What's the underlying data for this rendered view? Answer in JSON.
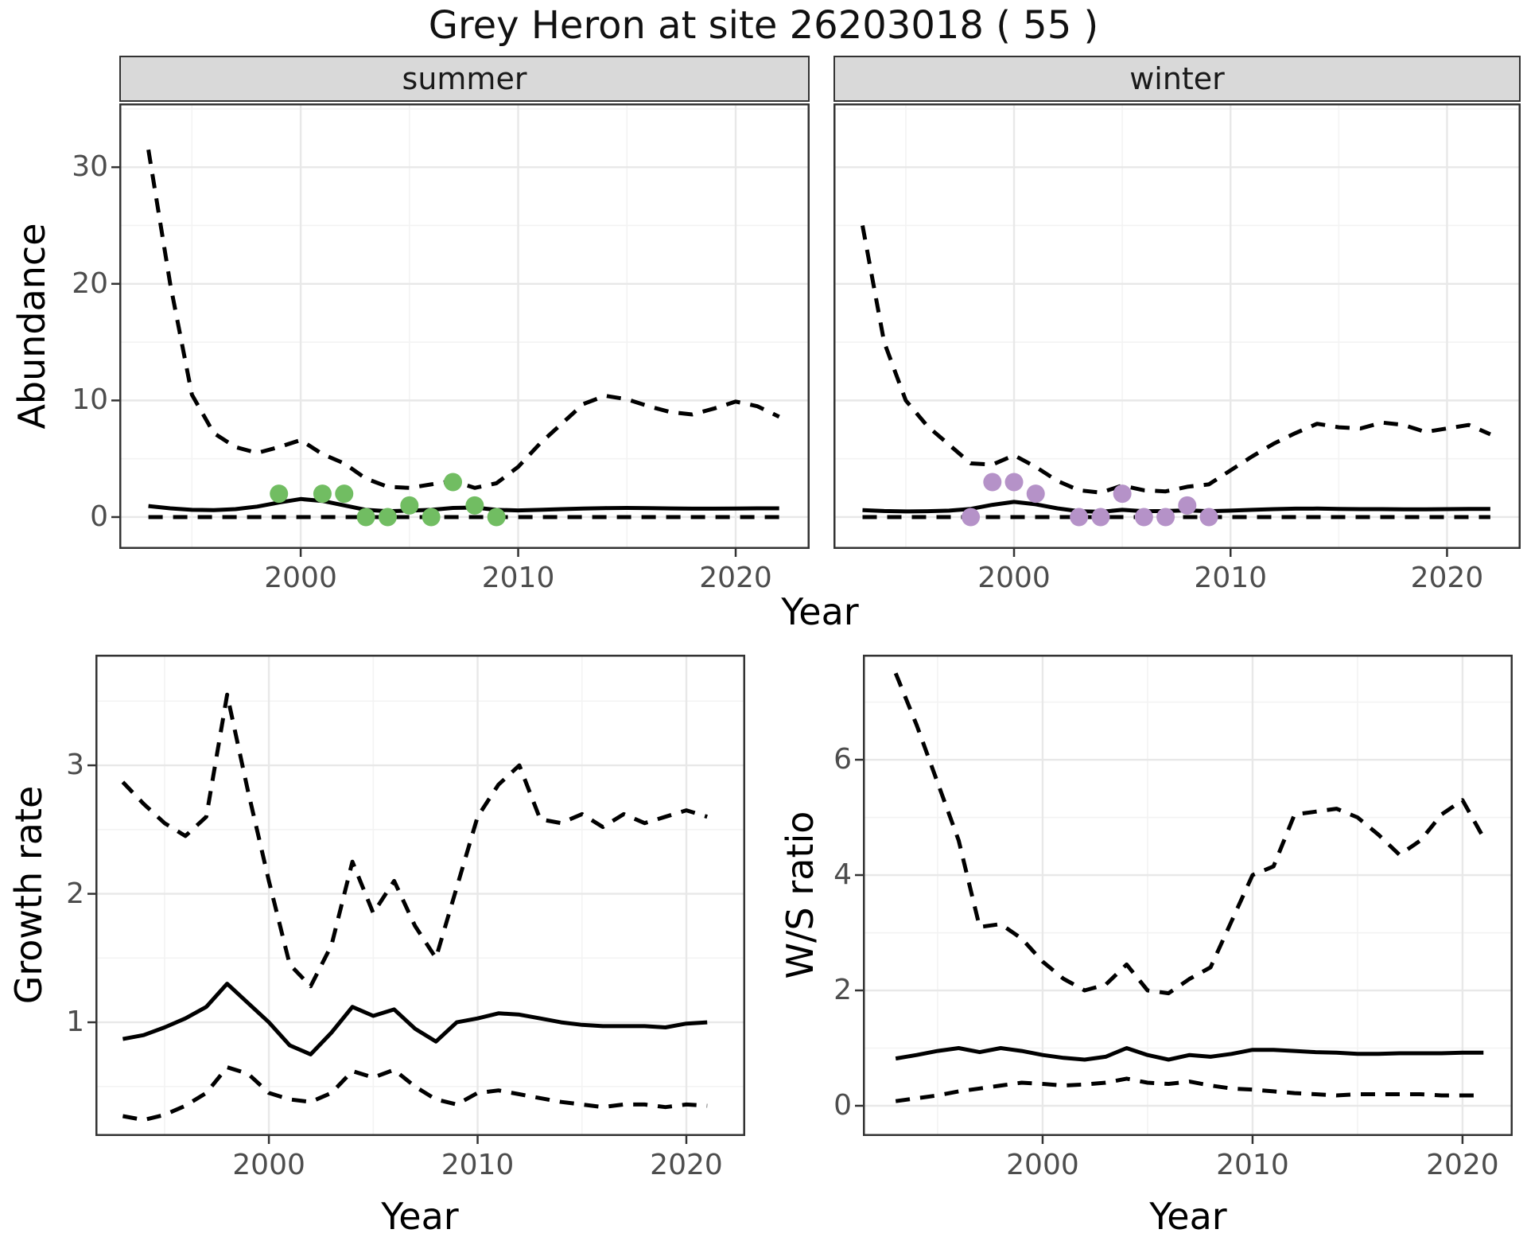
{
  "title": "Grey Heron at site 26203018 ( 55 )",
  "axes": {
    "x_label_top": "Year",
    "x_label_growth": "Year",
    "x_label_ws": "Year",
    "abundance_label": "Abundance",
    "growth_label": "Growth rate",
    "ws_label": "W/S ratio"
  },
  "facets": [
    {
      "label": "summer"
    },
    {
      "label": "winter"
    }
  ],
  "colors": {
    "summer_points": "#71BD62",
    "winter_points": "#B592C8",
    "line": "#000000",
    "strip_bg": "#D9D9D9",
    "grid_major": "#E8E8E8",
    "grid_minor": "#F3F3F3",
    "tick_label": "#4D4D4D",
    "panel_border": "#333333"
  },
  "chart_data": [
    {
      "id": "abundance_summer",
      "type": "line",
      "title": "summer",
      "xlabel": "Year",
      "ylabel": "Abundance",
      "xlim": [
        1991.66,
        2023.4
      ],
      "ylim": [
        -2.73,
        35.47
      ],
      "xticks": [
        2000,
        2010,
        2020
      ],
      "yticks": [
        0,
        10,
        20,
        30
      ],
      "xticks_minor": [
        1995,
        2005,
        2015
      ],
      "yticks_minor": [
        5,
        15,
        25,
        35
      ],
      "grid": true,
      "legend": "none",
      "x": [
        1993,
        1994,
        1995,
        1996,
        1997,
        1998,
        1999,
        2000,
        2001,
        2002,
        2003,
        2004,
        2005,
        2006,
        2007,
        2008,
        2009,
        2010,
        2011,
        2012,
        2013,
        2014,
        2015,
        2016,
        2017,
        2018,
        2019,
        2020,
        2021,
        2022
      ],
      "series": [
        {
          "name": "upper_95ci",
          "style": "dashed",
          "values": [
            31.5,
            20,
            10.5,
            7.2,
            6,
            5.5,
            6,
            6.6,
            5.4,
            4.6,
            3.3,
            2.6,
            2.5,
            2.8,
            3.1,
            2.5,
            2.9,
            4.3,
            6.3,
            8,
            9.7,
            10.4,
            10.1,
            9.5,
            9,
            8.8,
            9.3,
            9.9,
            9.5,
            8.6
          ]
        },
        {
          "name": "lower_95ci",
          "style": "dashed",
          "values": [
            0,
            0,
            0,
            0,
            0,
            0,
            0,
            0,
            0,
            0,
            0,
            0,
            0,
            0,
            0,
            0,
            0,
            0,
            0,
            0,
            0,
            0,
            0,
            0,
            0,
            0,
            0,
            0,
            0,
            0
          ]
        },
        {
          "name": "estimate",
          "style": "solid",
          "values": [
            0.95,
            0.75,
            0.62,
            0.6,
            0.68,
            0.9,
            1.25,
            1.55,
            1.38,
            1,
            0.62,
            0.5,
            0.55,
            0.62,
            0.78,
            0.82,
            0.62,
            0.57,
            0.62,
            0.68,
            0.73,
            0.77,
            0.78,
            0.77,
            0.74,
            0.72,
            0.72,
            0.73,
            0.75,
            0.75
          ]
        }
      ],
      "points": {
        "name": "observed_counts_summer",
        "color": "#71BD62",
        "x": [
          1999,
          2001,
          2002,
          2003,
          2004,
          2005,
          2006,
          2007,
          2008,
          2009
        ],
        "y": [
          2,
          2,
          2,
          0,
          0,
          1,
          0,
          3,
          1,
          0
        ]
      }
    },
    {
      "id": "abundance_winter",
      "type": "line",
      "title": "winter",
      "xlabel": "Year",
      "ylabel": "Abundance",
      "xlim": [
        1991.66,
        2023.4
      ],
      "ylim": [
        -2.73,
        35.47
      ],
      "xticks": [
        2000,
        2010,
        2020
      ],
      "yticks": [
        0,
        10,
        20,
        30
      ],
      "xticks_minor": [
        1995,
        2005,
        2015
      ],
      "yticks_minor": [
        5,
        15,
        25,
        35
      ],
      "grid": true,
      "legend": "none",
      "x": [
        1993,
        1994,
        1995,
        1996,
        1997,
        1998,
        1999,
        2000,
        2001,
        2002,
        2003,
        2004,
        2005,
        2006,
        2007,
        2008,
        2009,
        2010,
        2011,
        2012,
        2013,
        2014,
        2015,
        2016,
        2017,
        2018,
        2019,
        2020,
        2021,
        2022
      ],
      "series": [
        {
          "name": "upper_95ci",
          "style": "dashed",
          "values": [
            25,
            15,
            10,
            7.8,
            6.2,
            4.6,
            4.5,
            5.3,
            4.3,
            3.1,
            2.3,
            2.1,
            2.7,
            2.3,
            2.2,
            2.6,
            2.8,
            4,
            5.2,
            6.3,
            7.2,
            8,
            7.7,
            7.6,
            8.1,
            7.9,
            7.3,
            7.6,
            7.9,
            7.1
          ]
        },
        {
          "name": "lower_95ci",
          "style": "dashed",
          "values": [
            0,
            0,
            0,
            0,
            0,
            0,
            0,
            0,
            0,
            0,
            0,
            0,
            0,
            0,
            0,
            0,
            0,
            0,
            0,
            0,
            0,
            0,
            0,
            0,
            0,
            0,
            0,
            0,
            0,
            0
          ]
        },
        {
          "name": "estimate",
          "style": "solid",
          "values": [
            0.6,
            0.52,
            0.48,
            0.5,
            0.55,
            0.7,
            1.05,
            1.3,
            1.1,
            0.75,
            0.5,
            0.45,
            0.62,
            0.5,
            0.52,
            0.58,
            0.5,
            0.55,
            0.62,
            0.68,
            0.72,
            0.73,
            0.7,
            0.68,
            0.68,
            0.66,
            0.66,
            0.68,
            0.7,
            0.7
          ]
        }
      ],
      "points": {
        "name": "observed_counts_winter",
        "color": "#B592C8",
        "x": [
          1998,
          1999,
          2000,
          2001,
          2003,
          2004,
          2005,
          2006,
          2007,
          2008,
          2009
        ],
        "y": [
          0,
          3,
          3,
          2,
          0,
          0,
          2,
          0,
          0,
          1,
          0
        ]
      }
    },
    {
      "id": "growth_rate",
      "type": "line",
      "title": "",
      "xlabel": "Year",
      "ylabel": "Growth rate",
      "xlim": [
        1991.69,
        2022.82
      ],
      "ylim": [
        0.115,
        3.861
      ],
      "xticks": [
        2000,
        2010,
        2020
      ],
      "yticks": [
        1,
        2,
        3
      ],
      "xticks_minor": [
        1995,
        2005,
        2015
      ],
      "yticks_minor": [
        0.5,
        1.5,
        2.5,
        3.5
      ],
      "grid": true,
      "legend": "none",
      "x": [
        1993,
        1994,
        1995,
        1996,
        1997,
        1998,
        1999,
        2000,
        2001,
        2002,
        2003,
        2004,
        2005,
        2006,
        2007,
        2008,
        2009,
        2010,
        2011,
        2012,
        2013,
        2014,
        2015,
        2016,
        2017,
        2018,
        2019,
        2020,
        2021
      ],
      "series": [
        {
          "name": "upper_95ci",
          "style": "dashed",
          "values": [
            2.87,
            2.7,
            2.55,
            2.45,
            2.6,
            3.55,
            2.8,
            2.1,
            1.45,
            1.28,
            1.6,
            2.25,
            1.85,
            2.1,
            1.75,
            1.5,
            2.05,
            2.6,
            2.85,
            3,
            2.58,
            2.55,
            2.62,
            2.52,
            2.62,
            2.55,
            2.6,
            2.65,
            2.6
          ]
        },
        {
          "name": "lower_95ci",
          "style": "dashed",
          "values": [
            0.27,
            0.24,
            0.28,
            0.35,
            0.45,
            0.65,
            0.6,
            0.45,
            0.4,
            0.38,
            0.45,
            0.62,
            0.57,
            0.63,
            0.5,
            0.4,
            0.36,
            0.45,
            0.47,
            0.44,
            0.41,
            0.38,
            0.36,
            0.34,
            0.36,
            0.36,
            0.34,
            0.36,
            0.35
          ]
        },
        {
          "name": "estimate",
          "style": "solid",
          "values": [
            0.87,
            0.9,
            0.96,
            1.03,
            1.12,
            1.3,
            1.15,
            1,
            0.82,
            0.75,
            0.92,
            1.12,
            1.05,
            1.1,
            0.95,
            0.85,
            1,
            1.03,
            1.07,
            1.06,
            1.03,
            1,
            0.98,
            0.97,
            0.97,
            0.97,
            0.96,
            0.99,
            1
          ]
        }
      ]
    },
    {
      "id": "ws_ratio",
      "type": "line",
      "title": "",
      "xlabel": "Year",
      "ylabel": "W/S ratio",
      "xlim": [
        1991.44,
        2022.39
      ],
      "ylim": [
        -0.524,
        7.821
      ],
      "xticks": [
        2000,
        2010,
        2020
      ],
      "yticks": [
        0,
        2,
        4,
        6
      ],
      "xticks_minor": [
        1995,
        2005,
        2015
      ],
      "yticks_minor": [
        1,
        3,
        5,
        7
      ],
      "grid": true,
      "legend": "none",
      "x": [
        1993,
        1994,
        1995,
        1996,
        1997,
        1998,
        1999,
        2000,
        2001,
        2002,
        2003,
        2004,
        2005,
        2006,
        2007,
        2008,
        2009,
        2010,
        2011,
        2012,
        2013,
        2014,
        2015,
        2016,
        2017,
        2018,
        2019,
        2020,
        2021
      ],
      "series": [
        {
          "name": "upper_95ci",
          "style": "dashed",
          "values": [
            7.5,
            6.6,
            5.6,
            4.6,
            3.1,
            3.15,
            2.9,
            2.5,
            2.2,
            2,
            2.1,
            2.45,
            2,
            1.95,
            2.2,
            2.4,
            3.2,
            4,
            4.15,
            5.05,
            5.1,
            5.15,
            5,
            4.7,
            4.35,
            4.6,
            5.05,
            5.3,
            4.65
          ]
        },
        {
          "name": "lower_95ci",
          "style": "dashed",
          "values": [
            0.08,
            0.13,
            0.18,
            0.25,
            0.3,
            0.35,
            0.4,
            0.38,
            0.35,
            0.37,
            0.4,
            0.47,
            0.4,
            0.38,
            0.42,
            0.35,
            0.3,
            0.28,
            0.25,
            0.22,
            0.2,
            0.18,
            0.2,
            0.2,
            0.2,
            0.2,
            0.18,
            0.18,
            0.18
          ]
        },
        {
          "name": "estimate",
          "style": "solid",
          "values": [
            0.82,
            0.88,
            0.95,
            1,
            0.93,
            1,
            0.95,
            0.88,
            0.83,
            0.8,
            0.85,
            1,
            0.88,
            0.8,
            0.88,
            0.85,
            0.9,
            0.97,
            0.97,
            0.95,
            0.93,
            0.92,
            0.9,
            0.9,
            0.91,
            0.91,
            0.91,
            0.92,
            0.92
          ]
        }
      ]
    }
  ]
}
